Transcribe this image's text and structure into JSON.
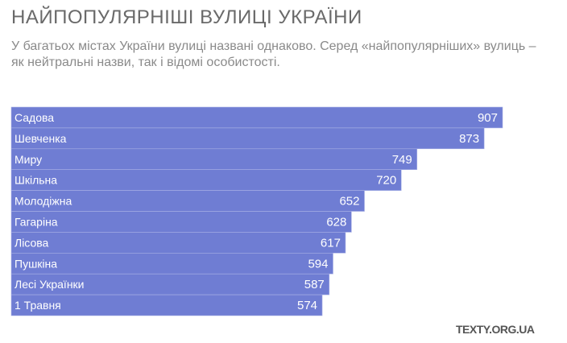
{
  "title": "НАЙПОПУЛЯРНІШІ ВУЛИЦІ УКРАЇНИ",
  "subtitle": "У багатьох містах України вулиці названі однаково. Серед «найпопулярніших» вулиць – як нейтральні назви, так і відомі особистості.",
  "brand": "TEXTY.ORG.UA",
  "chart_data": {
    "type": "bar",
    "orientation": "horizontal",
    "categories": [
      "Садова",
      "Шевченка",
      "Миру",
      "Шкільна",
      "Молодіжна",
      "Гагаріна",
      "Лісова",
      "Пушкіна",
      "Лесі Українки",
      "1 Травня"
    ],
    "values": [
      907,
      873,
      749,
      720,
      652,
      628,
      617,
      594,
      587,
      574
    ],
    "bar_color": "#6f7dd3",
    "label_color": "#ffffff",
    "xlim": [
      0,
      907
    ],
    "grid": false
  }
}
